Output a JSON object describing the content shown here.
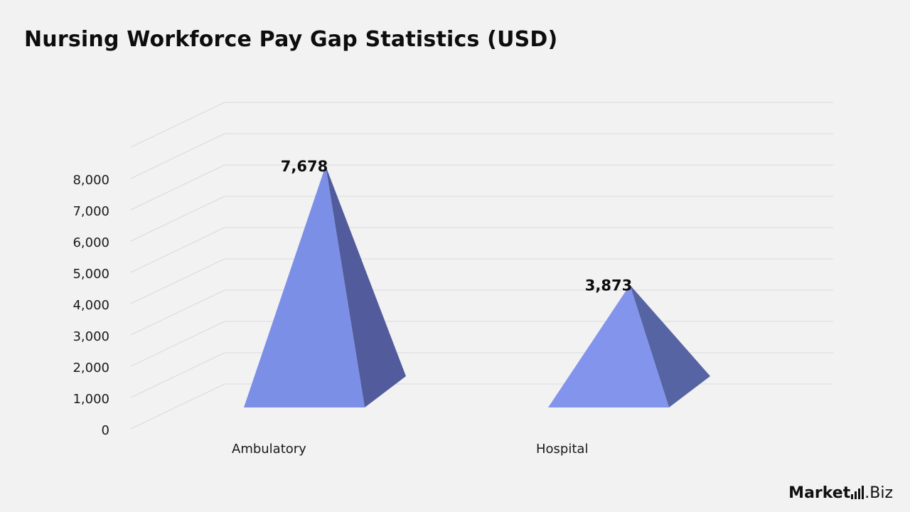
{
  "title": "Nursing Workforce Pay Gap Statistics (USD)",
  "logo": {
    "part1": "Market",
    "part2": ".Biz"
  },
  "colors": {
    "front_ambulatory": "#7b8fe6",
    "side_ambulatory": "#525c9c",
    "front_hospital": "#8294ec",
    "side_hospital": "#5764a3",
    "grid": "#d9d9d9"
  },
  "chart_data": {
    "type": "bar",
    "style": "3d-pyramid",
    "title": "Nursing Workforce Pay Gap Statistics (USD)",
    "categories": [
      "Ambulatory",
      "Hospital"
    ],
    "values": [
      7678,
      3873
    ],
    "data_labels": [
      "7,678",
      "3,873"
    ],
    "ylim": [
      0,
      8000
    ],
    "y_ticks": [
      0,
      1000,
      2000,
      3000,
      4000,
      5000,
      6000,
      7000,
      8000
    ],
    "y_tick_labels": [
      "0",
      "1,000",
      "2,000",
      "3,000",
      "4,000",
      "5,000",
      "6,000",
      "7,000",
      "8,000"
    ],
    "xlabel": "",
    "ylabel": "",
    "grid": true,
    "legend": "none"
  }
}
